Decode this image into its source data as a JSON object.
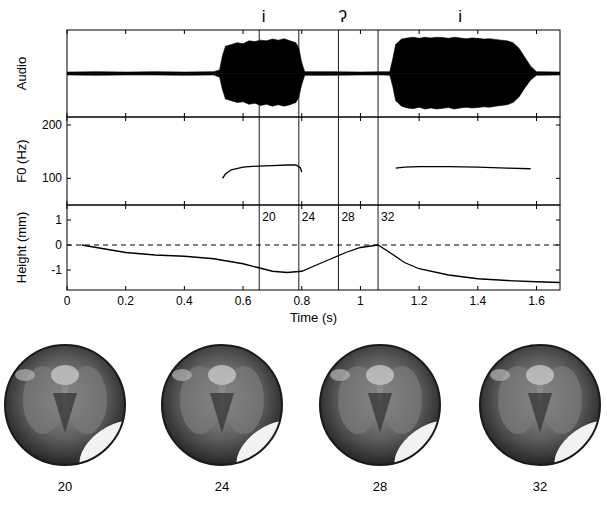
{
  "chart_data": [
    {
      "type": "area",
      "ylabel": "Audio",
      "xlim": [
        0,
        1.68
      ],
      "xticks": [
        0,
        0.2,
        0.4,
        0.6,
        0.8,
        1,
        1.2,
        1.4,
        1.6
      ],
      "ylim": [
        -1.2,
        1.2
      ],
      "tick_labels": false,
      "color": "#000000",
      "x": [
        0,
        0.1,
        0.2,
        0.3,
        0.4,
        0.5,
        0.52,
        0.53,
        0.54,
        0.56,
        0.58,
        0.6,
        0.62,
        0.64,
        0.66,
        0.68,
        0.7,
        0.72,
        0.74,
        0.76,
        0.78,
        0.79,
        0.8,
        0.81,
        0.9,
        1.0,
        1.08,
        1.1,
        1.11,
        1.12,
        1.14,
        1.16,
        1.18,
        1.2,
        1.22,
        1.24,
        1.26,
        1.28,
        1.3,
        1.32,
        1.34,
        1.36,
        1.38,
        1.4,
        1.42,
        1.44,
        1.46,
        1.48,
        1.5,
        1.52,
        1.54,
        1.56,
        1.58,
        1.6,
        1.68
      ],
      "upper": [
        0.04,
        0.05,
        0.04,
        0.05,
        0.04,
        0.05,
        0.1,
        0.5,
        0.75,
        0.8,
        0.85,
        0.82,
        0.9,
        0.88,
        0.92,
        0.9,
        0.95,
        0.92,
        0.96,
        0.9,
        0.85,
        0.7,
        0.3,
        0.05,
        0.05,
        0.04,
        0.05,
        0.05,
        0.4,
        0.8,
        0.95,
        0.98,
        1.0,
        0.97,
        1.0,
        0.98,
        1.0,
        0.99,
        0.97,
        1.0,
        0.98,
        0.96,
        0.98,
        0.97,
        0.95,
        0.96,
        0.94,
        0.92,
        0.9,
        0.85,
        0.7,
        0.45,
        0.2,
        0.05,
        0.04
      ],
      "lower": [
        -0.04,
        -0.05,
        -0.04,
        -0.04,
        -0.05,
        -0.04,
        -0.1,
        -0.45,
        -0.7,
        -0.75,
        -0.8,
        -0.78,
        -0.85,
        -0.82,
        -0.88,
        -0.85,
        -0.9,
        -0.86,
        -0.9,
        -0.86,
        -0.8,
        -0.65,
        -0.3,
        -0.05,
        -0.05,
        -0.04,
        -0.04,
        -0.05,
        -0.35,
        -0.75,
        -0.9,
        -0.95,
        -0.97,
        -0.93,
        -0.98,
        -0.95,
        -0.98,
        -0.96,
        -0.94,
        -0.98,
        -0.95,
        -0.93,
        -0.95,
        -0.94,
        -0.92,
        -0.93,
        -0.9,
        -0.88,
        -0.86,
        -0.8,
        -0.65,
        -0.4,
        -0.18,
        -0.05,
        -0.04
      ],
      "annotations": [
        {
          "text": "i",
          "x": 0.67
        },
        {
          "text": "ʔ",
          "x": 0.94
        },
        {
          "text": "i",
          "x": 1.34
        }
      ]
    },
    {
      "type": "line",
      "ylabel": "F0 (Hz)",
      "xlim": [
        0,
        1.68
      ],
      "xticks": [
        0,
        0.2,
        0.4,
        0.6,
        0.8,
        1,
        1.2,
        1.4,
        1.6
      ],
      "ylim": [
        50,
        215
      ],
      "yticks": [
        100,
        200
      ],
      "tick_labels": "y",
      "color": "#000000",
      "x": [
        0.53,
        0.54,
        0.56,
        0.6,
        0.65,
        0.7,
        0.75,
        0.78,
        0.795,
        0.8,
        1.0,
        1.12,
        1.15,
        1.2,
        1.3,
        1.4,
        1.5,
        1.58
      ],
      "values": [
        100,
        108,
        116,
        121,
        123,
        124,
        125,
        125,
        120,
        112,
        null,
        119,
        121,
        122,
        122,
        121,
        119,
        118
      ]
    },
    {
      "type": "line",
      "ylabel": "Height (mm)",
      "xlabel": "Time (s)",
      "xlim": [
        0,
        1.68
      ],
      "xticks": [
        0,
        0.2,
        0.4,
        0.6,
        0.8,
        1,
        1.2,
        1.4,
        1.6
      ],
      "ylim": [
        -1.8,
        1.6
      ],
      "yticks": [
        -1,
        0,
        1
      ],
      "color": "#000000",
      "hlines": [
        {
          "y": 0,
          "line_style": "dashed"
        }
      ],
      "x": [
        0.05,
        0.1,
        0.2,
        0.3,
        0.4,
        0.5,
        0.6,
        0.65,
        0.7,
        0.75,
        0.8,
        0.85,
        0.9,
        0.95,
        1.0,
        1.06,
        1.1,
        1.15,
        1.2,
        1.3,
        1.4,
        1.5,
        1.6,
        1.68
      ],
      "values": [
        0,
        -0.1,
        -0.3,
        -0.4,
        -0.45,
        -0.55,
        -0.75,
        -0.9,
        -1.05,
        -1.1,
        -1.05,
        -0.8,
        -0.55,
        -0.3,
        -0.1,
        0,
        -0.3,
        -0.7,
        -0.95,
        -1.2,
        -1.35,
        -1.42,
        -1.47,
        -1.5
      ]
    }
  ],
  "frames": {
    "labels": [
      20,
      24,
      28,
      32
    ],
    "times": [
      0.655,
      0.79,
      0.925,
      1.06
    ]
  }
}
